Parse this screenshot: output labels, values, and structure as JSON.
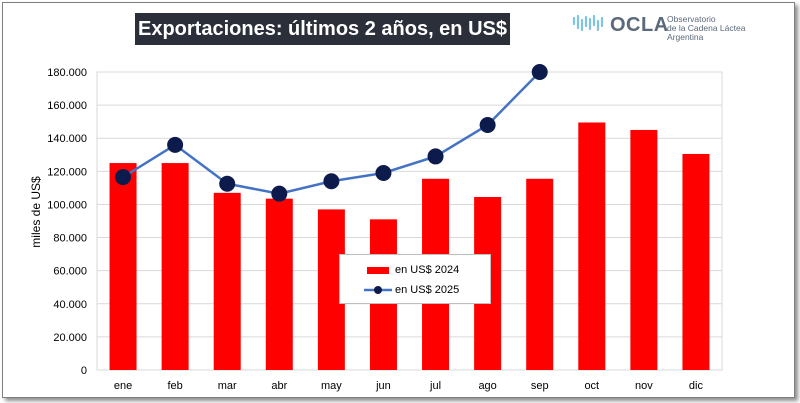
{
  "title": "Exportaciones: últimos 2 años, en US$",
  "logo": {
    "icon": "ocla-wave-logo-icon",
    "wordmark": "OCLA",
    "line1": "Observatorio",
    "line2": "de la Cadena Láctea",
    "line3": "Argentina"
  },
  "colors": {
    "bars": "#ff0000",
    "line": "#4472c4",
    "markers": "#0d1b4c"
  },
  "chart_data": {
    "type": "bar",
    "title": "Exportaciones: últimos 2 años, en US$",
    "xlabel": "",
    "ylabel": "miles de US$",
    "ylim": [
      0,
      180000
    ],
    "yticks": [
      "0",
      "20.000",
      "40.000",
      "60.000",
      "80.000",
      "100.000",
      "120.000",
      "140.000",
      "160.000",
      "180.000"
    ],
    "ytick_values": [
      0,
      20000,
      40000,
      60000,
      80000,
      100000,
      120000,
      140000,
      160000,
      180000
    ],
    "categories": [
      "ene",
      "feb",
      "mar",
      "abr",
      "may",
      "jun",
      "jul",
      "ago",
      "sep",
      "oct",
      "nov",
      "dic"
    ],
    "series": [
      {
        "name": "en US$ 2024",
        "type": "bar",
        "values": [
          125000,
          125000,
          107000,
          103500,
          97000,
          91000,
          115500,
          104500,
          115500,
          149500,
          145000,
          130500
        ]
      },
      {
        "name": "en US$ 2025",
        "type": "line",
        "values": [
          116500,
          136000,
          112500,
          106500,
          114000,
          119000,
          129000,
          148000,
          180000,
          null,
          null,
          null
        ]
      }
    ],
    "grid": true,
    "legend_position": "center"
  }
}
